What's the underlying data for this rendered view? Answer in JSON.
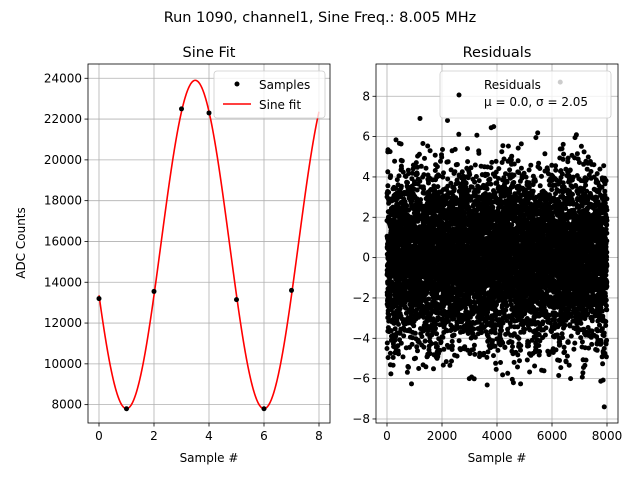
{
  "figure": {
    "suptitle": "Run 1090, channel1, Sine Freq.: 8.005 MHz"
  },
  "colors": {
    "samples": "#000000",
    "fit": "#ff0000",
    "grid": "#b0b0b0",
    "axes": "#000000"
  },
  "chart_data": [
    {
      "type": "line",
      "title": "Sine Fit",
      "xlabel": "Sample #",
      "ylabel": "ADC Counts",
      "xlim": [
        -0.4,
        8.4
      ],
      "ylim": [
        7100,
        24700
      ],
      "xticks": [
        0,
        2,
        4,
        6,
        8
      ],
      "yticks": [
        8000,
        10000,
        12000,
        14000,
        16000,
        18000,
        20000,
        22000,
        24000
      ],
      "grid": true,
      "legend": {
        "position": "top-right",
        "entries": [
          "Samples",
          "Sine fit"
        ]
      },
      "series": [
        {
          "name": "Samples",
          "style": "points",
          "x": [
            0,
            1,
            2,
            3,
            4,
            5,
            6,
            7
          ],
          "y": [
            13200,
            7800,
            13550,
            22500,
            22300,
            13150,
            7800,
            13600
          ]
        },
        {
          "name": "Sine fit",
          "style": "line",
          "fit": {
            "offset": 15850,
            "amplitude": 8050,
            "period": 5,
            "peak_x": 3.5
          },
          "x_range": [
            0,
            8
          ]
        }
      ]
    },
    {
      "type": "scatter",
      "title": "Residuals",
      "xlabel": "Sample #",
      "ylabel": "",
      "xlim": [
        -400,
        8400
      ],
      "ylim": [
        -8.2,
        9.6
      ],
      "xticks": [
        0,
        2000,
        4000,
        6000,
        8000
      ],
      "yticks": [
        -8,
        -6,
        -4,
        -2,
        0,
        2,
        4,
        6,
        8
      ],
      "grid": true,
      "legend": {
        "position": "top-right",
        "entries": [
          "Residuals",
          "μ = 0.0, σ = 2.05"
        ]
      },
      "series": [
        {
          "name": "Residuals",
          "n_points": 8000,
          "mean": 0.0,
          "std": 2.05,
          "outliers": [
            {
              "x": 6300,
              "y": 8.7
            },
            {
              "x": 7900,
              "y": -7.4
            },
            {
              "x": 1200,
              "y": 6.9
            },
            {
              "x": 2200,
              "y": 6.8
            }
          ]
        }
      ]
    }
  ]
}
